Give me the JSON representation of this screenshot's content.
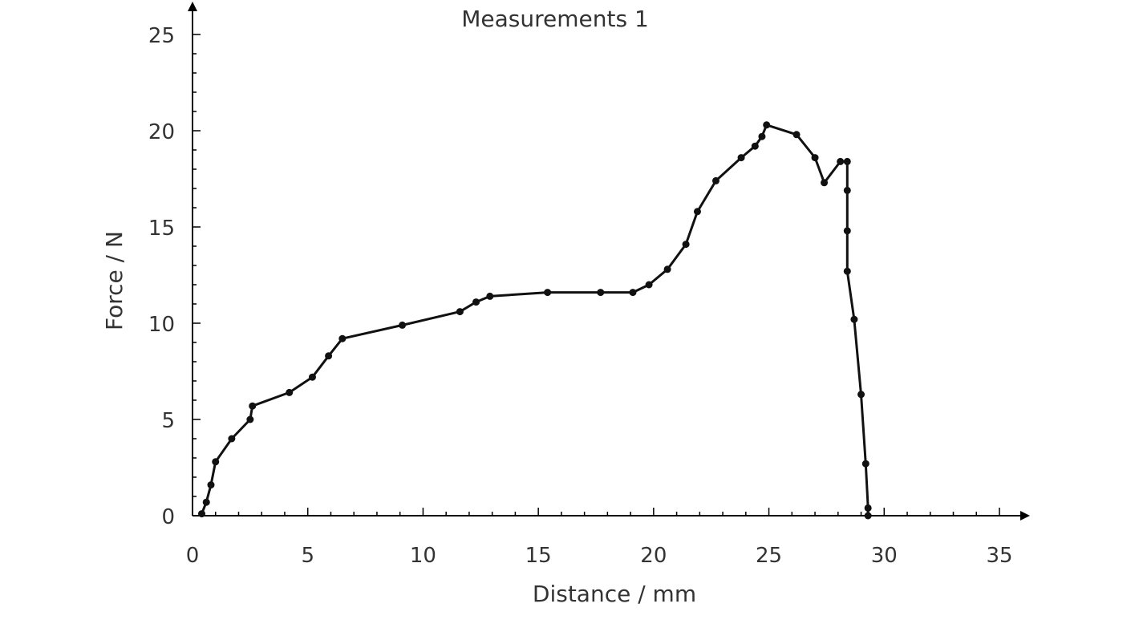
{
  "chart_data": {
    "type": "line",
    "title": "Measurements 1",
    "xlabel": "Distance / mm",
    "ylabel": "Force / N",
    "xlim": [
      0,
      35
    ],
    "ylim": [
      0,
      25
    ],
    "x_ticks": [
      0,
      5,
      10,
      15,
      20,
      25,
      30,
      35
    ],
    "y_ticks": [
      0,
      5,
      10,
      15,
      20,
      25
    ],
    "grid": false,
    "legend": "none",
    "line_color": "#111111",
    "series": [
      {
        "x": [
          0.4,
          0.6,
          0.8,
          1.0,
          1.7,
          2.5,
          2.6,
          4.2,
          5.2,
          5.9,
          6.5,
          9.1,
          11.6,
          12.3,
          12.9,
          15.4,
          17.7,
          19.1,
          19.8,
          20.6,
          21.4,
          21.9,
          22.7,
          23.8,
          24.4,
          24.7,
          24.9,
          26.2,
          27.0,
          27.4,
          28.1,
          28.4,
          28.4,
          28.4,
          28.4,
          28.7,
          29.0,
          29.2,
          29.3,
          29.3
        ],
        "y": [
          0.1,
          0.7,
          1.6,
          2.8,
          4.0,
          5.0,
          5.7,
          6.4,
          7.2,
          8.3,
          9.2,
          9.9,
          10.6,
          11.1,
          11.4,
          11.6,
          11.6,
          11.6,
          12.0,
          12.8,
          14.1,
          15.8,
          17.4,
          18.6,
          19.2,
          19.7,
          20.3,
          19.8,
          18.6,
          17.3,
          18.4,
          18.4,
          16.9,
          14.8,
          12.7,
          10.2,
          6.3,
          2.7,
          0.4,
          0.0
        ]
      }
    ]
  }
}
